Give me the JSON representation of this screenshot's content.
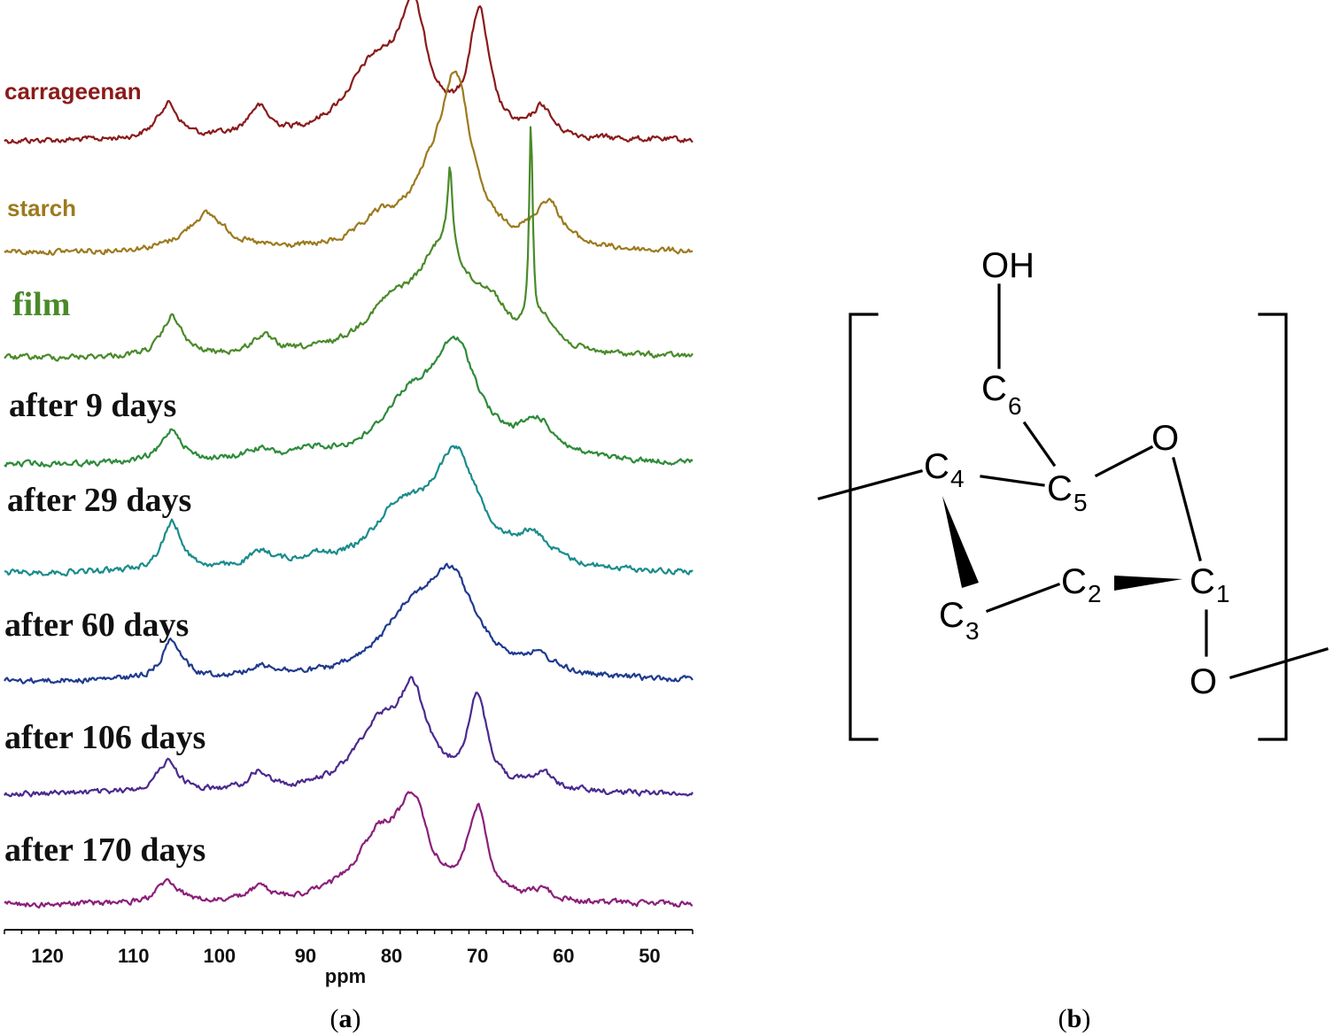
{
  "chart_data": {
    "type": "line",
    "xlabel": "ppm",
    "xlim": [
      125,
      45
    ],
    "xticks": [
      120,
      110,
      100,
      90,
      80,
      70,
      60,
      50
    ],
    "series": [
      {
        "name": "carrageenan",
        "color": "#8b1a1a",
        "label_style": "sans",
        "peaks": [
          [
            106,
            0.4,
            1.5
          ],
          [
            95.5,
            0.32,
            1.5
          ],
          [
            82,
            0.78,
            4
          ],
          [
            77.5,
            1.25,
            2
          ],
          [
            69.8,
            1.35,
            1.4
          ],
          [
            62.5,
            0.32,
            1.3
          ]
        ]
      },
      {
        "name": "starch",
        "color": "#9c7a1e",
        "label_style": "sans",
        "peaks": [
          [
            101.5,
            0.42,
            2.8
          ],
          [
            81.5,
            0.25,
            2.5
          ],
          [
            72.5,
            1.7,
            2.2
          ],
          [
            75.5,
            0.55,
            3.5
          ],
          [
            61.8,
            0.5,
            2
          ]
        ]
      },
      {
        "name": "film",
        "color": "#4a8a2a",
        "label_style": "serif",
        "peaks": [
          [
            105.5,
            0.45,
            1.4
          ],
          [
            95,
            0.2,
            1.5
          ],
          [
            80,
            0.45,
            4
          ],
          [
            74,
            1.1,
            3.5
          ],
          [
            73.2,
            0.9,
            0.35
          ],
          [
            68.5,
            0.4,
            2.5
          ],
          [
            63.8,
            2.35,
            0.25
          ],
          [
            62,
            0.3,
            1.5
          ]
        ]
      },
      {
        "name": "after 9 days",
        "color": "#2e8b3a",
        "label_style": "serif",
        "peaks": [
          [
            105.5,
            0.38,
            1.4
          ],
          [
            95.5,
            0.12,
            2
          ],
          [
            89,
            0.1,
            2
          ],
          [
            78,
            0.6,
            4
          ],
          [
            72.5,
            1.2,
            3.2
          ],
          [
            63,
            0.38,
            2.5
          ]
        ]
      },
      {
        "name": "after 29 days",
        "color": "#1a8c8c",
        "label_style": "serif",
        "peaks": [
          [
            105.5,
            0.55,
            1.4
          ],
          [
            95,
            0.18,
            2
          ],
          [
            89,
            0.1,
            2
          ],
          [
            79,
            0.6,
            4
          ],
          [
            72.5,
            1.25,
            3.3
          ],
          [
            63.5,
            0.3,
            2.5
          ]
        ]
      },
      {
        "name": "after 60 days",
        "color": "#1f3a8f",
        "label_style": "serif",
        "peaks": [
          [
            105.5,
            0.45,
            1.4
          ],
          [
            95,
            0.12,
            2.5
          ],
          [
            78,
            0.6,
            4
          ],
          [
            73,
            1.05,
            3.5
          ],
          [
            63,
            0.18,
            2.5
          ]
        ]
      },
      {
        "name": "after 106 days",
        "color": "#4b2a8f",
        "label_style": "serif",
        "peaks": [
          [
            106,
            0.35,
            1.5
          ],
          [
            95.5,
            0.2,
            1.5
          ],
          [
            81.5,
            0.7,
            3.5
          ],
          [
            77.5,
            0.95,
            2
          ],
          [
            70,
            1.0,
            1.4
          ],
          [
            62.5,
            0.2,
            1.5
          ]
        ]
      },
      {
        "name": "after 170 days",
        "color": "#8b1f7a",
        "label_style": "serif",
        "peaks": [
          [
            106,
            0.25,
            1.5
          ],
          [
            95.5,
            0.15,
            1.5
          ],
          [
            81.5,
            0.7,
            3.5
          ],
          [
            77.5,
            0.95,
            2
          ],
          [
            70,
            1.0,
            1.4
          ],
          [
            62.5,
            0.12,
            1.5
          ]
        ]
      }
    ]
  },
  "captions": {
    "left": "(a)",
    "left_letter": "a",
    "right": "(b)",
    "right_letter": "b"
  },
  "structure": {
    "oh": "OH",
    "o_ring": "O",
    "o_link": "O",
    "atoms": [
      {
        "symbol": "C",
        "index": "6"
      },
      {
        "symbol": "C",
        "index": "4"
      },
      {
        "symbol": "C",
        "index": "5"
      },
      {
        "symbol": "C",
        "index": "3"
      },
      {
        "symbol": "C",
        "index": "2"
      },
      {
        "symbol": "C",
        "index": "1"
      }
    ]
  }
}
